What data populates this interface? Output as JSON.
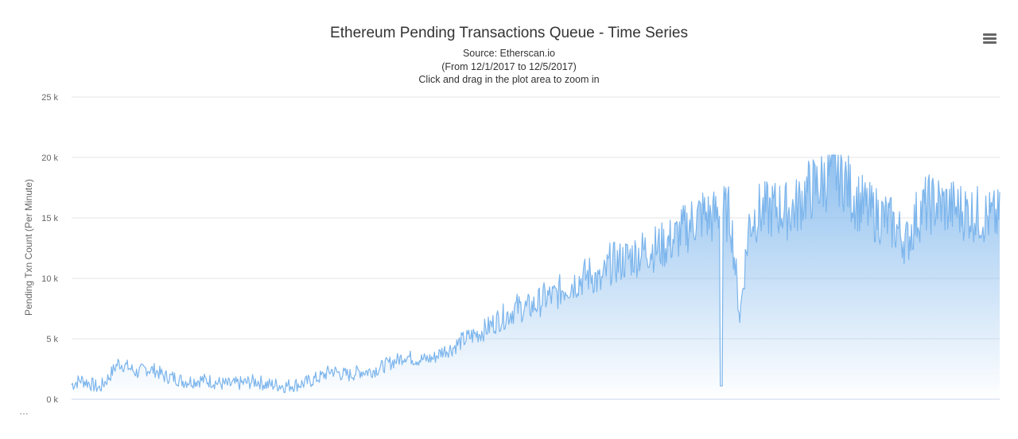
{
  "chart_data": {
    "type": "area",
    "title": "Ethereum Pending Transactions Queue - Time Series",
    "subtitles": [
      "Source: Etherscan.io",
      "(From 12/1/2017 to 12/5/2017)",
      "Click and drag in the plot area to zoom in"
    ],
    "ylabel": "Pending Txn Count (Per Minute)",
    "xlabel": "",
    "ylim": [
      0,
      25000
    ],
    "ytick_values": [
      0,
      5000,
      10000,
      15000,
      20000,
      25000
    ],
    "ytick_labels": [
      "0 k",
      "5 k",
      "10 k",
      "15 k",
      "20 k",
      "25 k"
    ],
    "xlim": [
      0,
      1
    ],
    "x_axis_note": "x = fraction of the period 12/1/2017 – 12/5/2017 (no x tick labels shown)",
    "grid": true,
    "legend": "none",
    "series": [
      {
        "line_color": "#7cb5ec",
        "x": [
          0.0,
          0.01,
          0.02,
          0.03,
          0.04,
          0.05,
          0.06,
          0.07,
          0.08,
          0.09,
          0.1,
          0.11,
          0.12,
          0.13,
          0.14,
          0.15,
          0.16,
          0.17,
          0.18,
          0.19,
          0.2,
          0.21,
          0.22,
          0.23,
          0.24,
          0.25,
          0.26,
          0.27,
          0.28,
          0.29,
          0.3,
          0.31,
          0.32,
          0.33,
          0.34,
          0.35,
          0.36,
          0.37,
          0.38,
          0.39,
          0.4,
          0.41,
          0.42,
          0.43,
          0.44,
          0.45,
          0.46,
          0.47,
          0.48,
          0.49,
          0.5,
          0.51,
          0.52,
          0.53,
          0.54,
          0.55,
          0.56,
          0.57,
          0.58,
          0.59,
          0.6,
          0.61,
          0.62,
          0.63,
          0.64,
          0.65,
          0.66,
          0.67,
          0.68,
          0.69,
          0.7,
          0.71,
          0.72,
          0.73,
          0.74,
          0.75,
          0.76,
          0.77,
          0.78,
          0.79,
          0.8,
          0.81,
          0.82,
          0.83,
          0.84,
          0.85,
          0.86,
          0.87,
          0.88,
          0.89,
          0.9,
          0.91,
          0.92,
          0.93,
          0.94,
          0.95,
          0.96,
          0.97,
          0.98,
          0.99,
          1.0
        ],
        "values": [
          1200,
          1600,
          1300,
          900,
          1800,
          3000,
          2700,
          2200,
          2500,
          2400,
          1900,
          1800,
          1500,
          1500,
          1600,
          1500,
          1300,
          1200,
          1300,
          1400,
          1500,
          1200,
          1200,
          1100,
          1200,
          1300,
          1600,
          1900,
          2400,
          2100,
          2000,
          2300,
          2300,
          2500,
          2900,
          3200,
          3600,
          3300,
          3300,
          3400,
          4000,
          4200,
          4800,
          5200,
          5500,
          6000,
          6600,
          7000,
          7600,
          7500,
          7800,
          8400,
          8500,
          9200,
          9600,
          10000,
          10400,
          9500,
          11200,
          11300,
          11700,
          12000,
          12400,
          12500,
          12800,
          13300,
          14000,
          14800,
          15300,
          15000,
          15500,
          15200,
          6800,
          14500,
          15500,
          15600,
          15800,
          15600,
          15800,
          17000,
          17500,
          18000,
          19000,
          18800,
          17000,
          16200,
          15500,
          15200,
          14800,
          14000,
          13000,
          15000,
          16000,
          16200,
          16000,
          15800,
          15600,
          15400,
          15200,
          15000,
          15000
        ]
      }
    ]
  }
}
